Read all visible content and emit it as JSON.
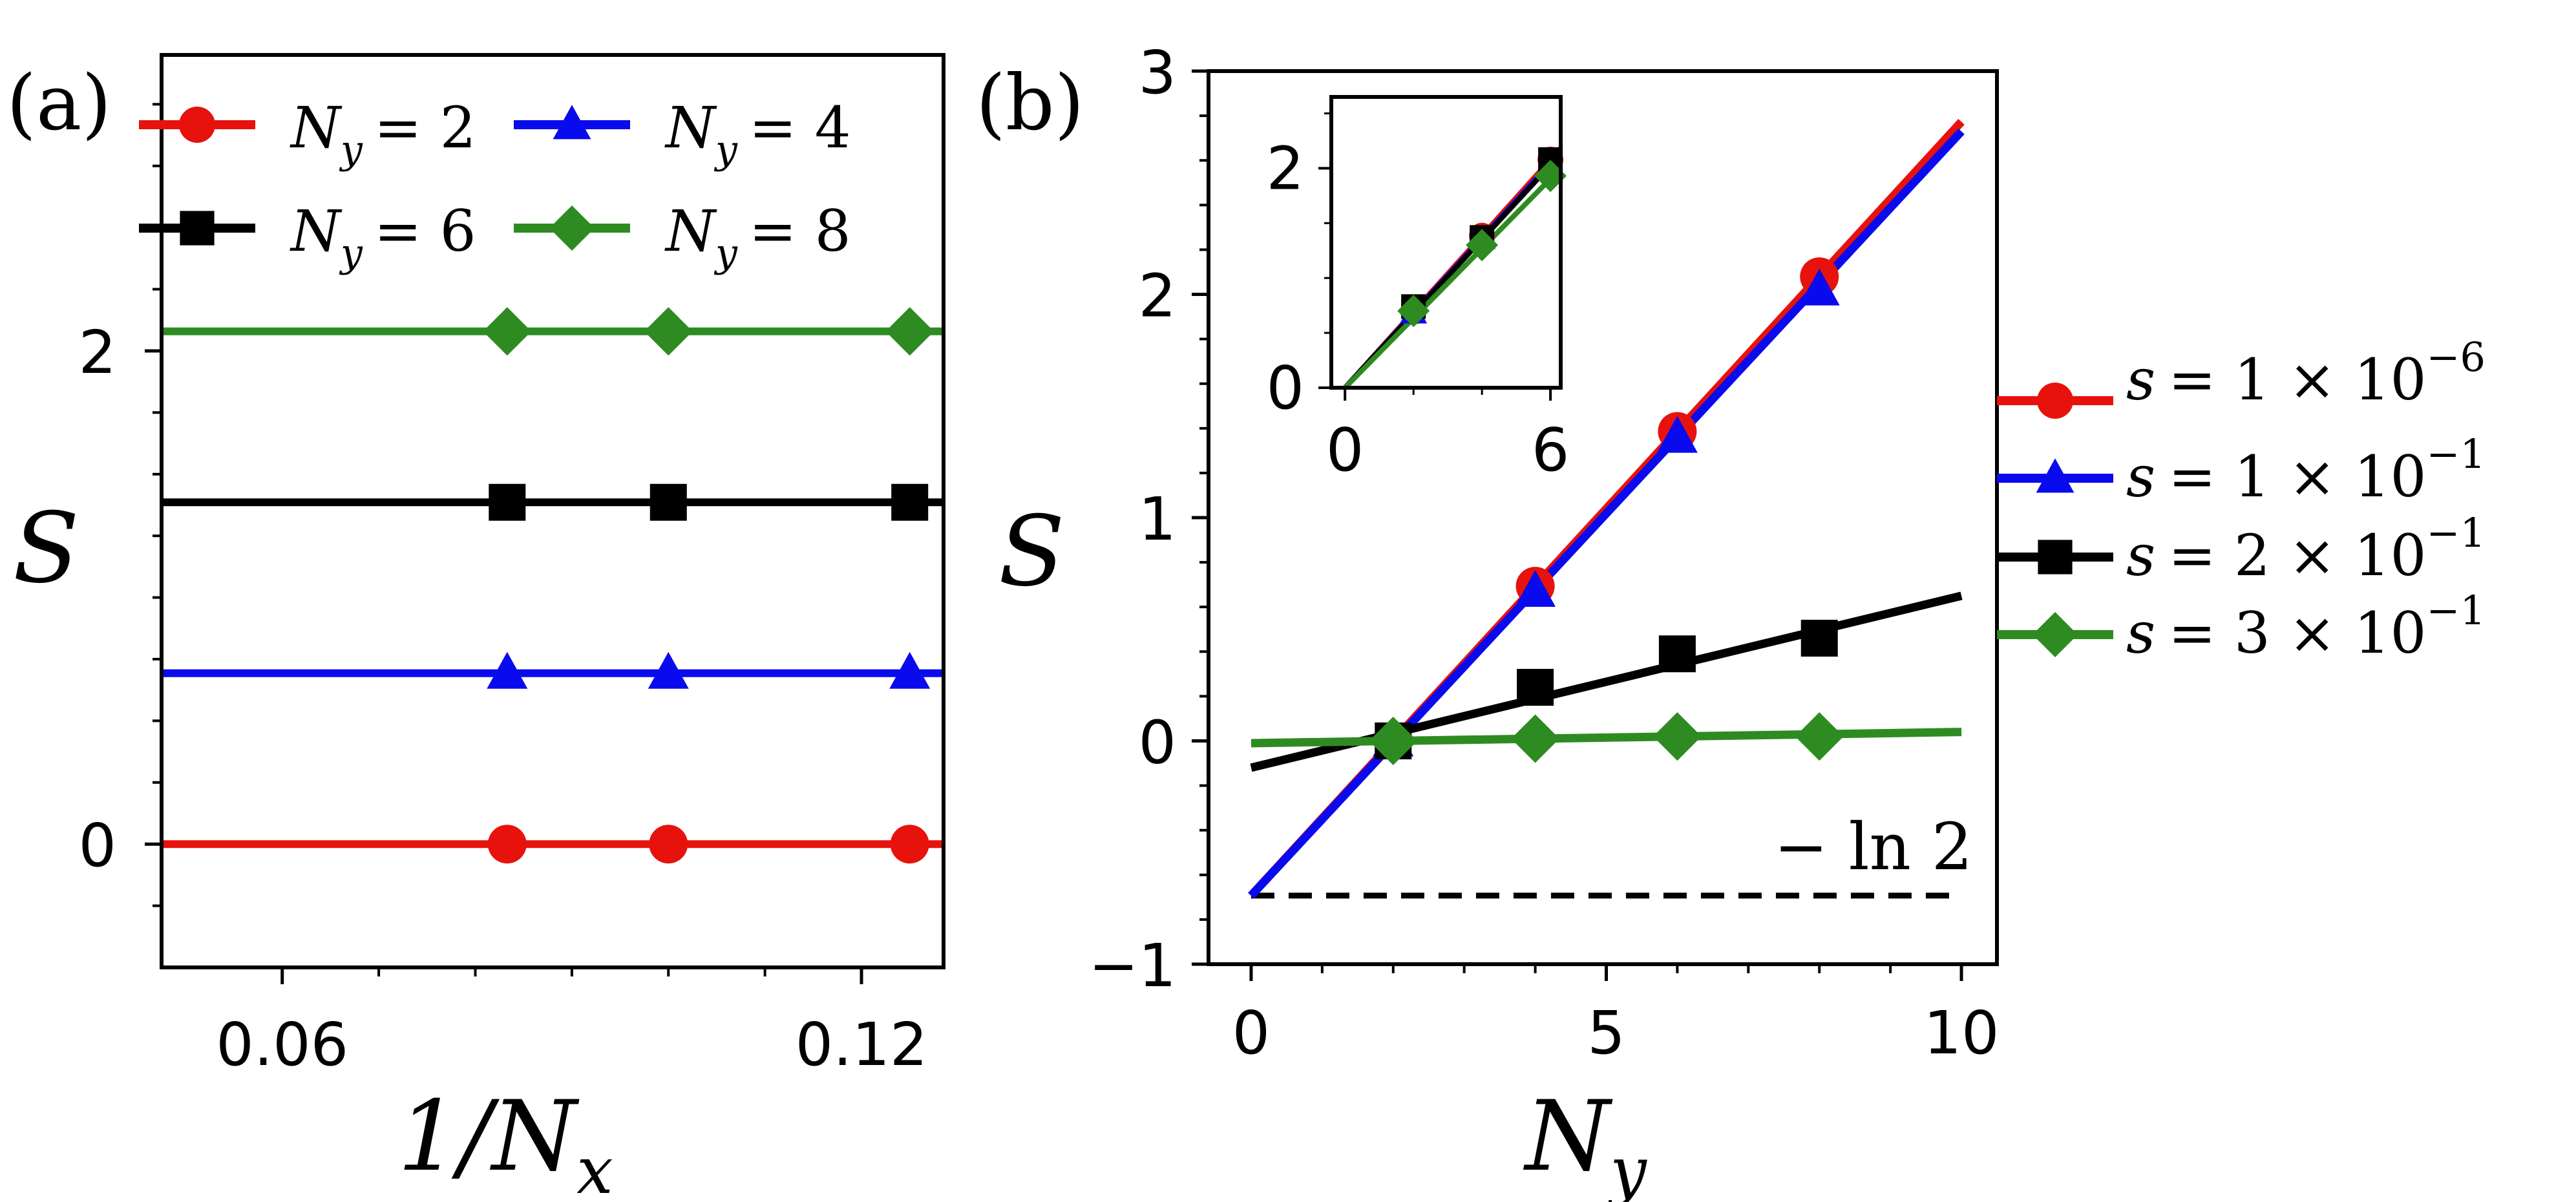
{
  "chart_data": [
    {
      "panel": "a",
      "panel_label": "(a)",
      "type": "line",
      "xlabel": "1/N_x",
      "ylabel": "S",
      "xlim": [
        0.0475,
        0.1285
      ],
      "ylim": [
        -0.5,
        3.2
      ],
      "xticks": [
        0.06,
        0.12
      ],
      "xtick_labels": [
        "0.06",
        "0.12"
      ],
      "yticks": [
        0,
        2
      ],
      "ytick_labels": [
        "0",
        "2"
      ],
      "legend_position": "top",
      "series": [
        {
          "name": "N_y = 2",
          "legend_lhs": "N",
          "legend_sub": "y",
          "legend_rhs": "= 2",
          "color": "#e8120c",
          "marker": "circle",
          "line_x": [
            0.0475,
            0.1285
          ],
          "line_y": [
            0,
            0
          ],
          "x": [
            0.0833,
            0.1,
            0.125
          ],
          "y": [
            0,
            0,
            0
          ]
        },
        {
          "name": "N_y = 4",
          "legend_lhs": "N",
          "legend_sub": "y",
          "legend_rhs": "= 4",
          "color": "#0a0aee",
          "marker": "triangle",
          "line_x": [
            0.0475,
            0.1285
          ],
          "line_y": [
            0.693,
            0.693
          ],
          "x": [
            0.0833,
            0.1,
            0.125
          ],
          "y": [
            0.693,
            0.693,
            0.693
          ]
        },
        {
          "name": "N_y = 6",
          "legend_lhs": "N",
          "legend_sub": "y",
          "legend_rhs": "= 6",
          "color": "#000000",
          "marker": "square",
          "line_x": [
            0.0475,
            0.1285
          ],
          "line_y": [
            1.386,
            1.386
          ],
          "x": [
            0.0833,
            0.1,
            0.125
          ],
          "y": [
            1.386,
            1.386,
            1.386
          ]
        },
        {
          "name": "N_y = 8",
          "legend_lhs": "N",
          "legend_sub": "y",
          "legend_rhs": "= 8",
          "color": "#2e8b22",
          "marker": "diamond",
          "line_x": [
            0.0475,
            0.1285
          ],
          "line_y": [
            2.079,
            2.079
          ],
          "x": [
            0.0833,
            0.1,
            0.125
          ],
          "y": [
            2.079,
            2.079,
            2.079
          ]
        }
      ]
    },
    {
      "panel": "b",
      "panel_label": "(b)",
      "type": "line",
      "xlabel": "N_y",
      "ylabel": "S",
      "xlim": [
        -0.6,
        10.5
      ],
      "ylim": [
        -1,
        3
      ],
      "xticks": [
        0,
        5,
        10
      ],
      "xtick_labels": [
        "0",
        "5",
        "10"
      ],
      "yticks": [
        -1,
        0,
        1,
        2,
        3
      ],
      "ytick_labels": [
        "−1",
        "0",
        "1",
        "2",
        "3"
      ],
      "reference_line": {
        "label": "− ln 2",
        "y": -0.693,
        "style": "dashed"
      },
      "legend_position": "right, outside",
      "series": [
        {
          "name": "s = 1 × 10^-6",
          "legend_lhs": "s",
          "legend_rhs": "= 1 × 10",
          "legend_exp": "−6",
          "color": "#e8120c",
          "marker": "circle",
          "line_x": [
            0,
            10
          ],
          "line_y": [
            -0.693,
            2.773
          ],
          "x": [
            4,
            6,
            8
          ],
          "y": [
            0.693,
            1.386,
            2.079
          ]
        },
        {
          "name": "s = 1 × 10^-1",
          "legend_lhs": "s",
          "legend_rhs": "= 1 × 10",
          "legend_exp": "−1",
          "color": "#0a0aee",
          "marker": "triangle",
          "line_x": [
            0,
            10
          ],
          "line_y": [
            -0.693,
            2.73
          ],
          "x": [
            2,
            4,
            6,
            8
          ],
          "y": [
            0,
            0.67,
            1.36,
            2.02
          ]
        },
        {
          "name": "s = 2 × 10^-1",
          "legend_lhs": "s",
          "legend_rhs": "= 2 × 10",
          "legend_exp": "−1",
          "color": "#000000",
          "marker": "square",
          "line_x": [
            0,
            10
          ],
          "line_y": [
            -0.12,
            0.65
          ],
          "x": [
            2,
            4,
            6,
            8
          ],
          "y": [
            0,
            0.24,
            0.39,
            0.46
          ]
        },
        {
          "name": "s = 3 × 10^-1",
          "legend_lhs": "s",
          "legend_rhs": "= 3 × 10",
          "legend_exp": "−1",
          "color": "#2e8b22",
          "marker": "diamond",
          "line_x": [
            0,
            10
          ],
          "line_y": [
            -0.01,
            0.04
          ],
          "x": [
            2,
            4,
            6,
            8
          ],
          "y": [
            0,
            0.01,
            0.02,
            0.02
          ]
        }
      ]
    },
    {
      "panel": "b-inset",
      "type": "line",
      "xlim": [
        -0.4,
        6.3
      ],
      "ylim": [
        0,
        2.65
      ],
      "xticks": [
        0,
        6
      ],
      "xtick_labels": [
        "0",
        "6"
      ],
      "yticks": [
        0,
        2
      ],
      "ytick_labels": [
        "0",
        "2"
      ],
      "series": [
        {
          "name": "s = 1 × 10^-6",
          "color": "#e8120c",
          "marker": "circle",
          "line_x": [
            0,
            6.3
          ],
          "line_y": [
            0,
            2.183
          ],
          "x": [
            2,
            4,
            6
          ],
          "y": [
            0.693,
            1.386,
            2.079
          ]
        },
        {
          "name": "s = 1 × 10^-1",
          "color": "#0a0aee",
          "marker": "triangle",
          "line_x": [
            0,
            6.3
          ],
          "line_y": [
            0,
            2.15
          ],
          "x": [
            2,
            4,
            6
          ],
          "y": [
            0.68,
            1.36,
            2.04
          ]
        },
        {
          "name": "s = 2 × 10^-1",
          "color": "#000000",
          "marker": "square",
          "line_x": [
            0,
            6.3
          ],
          "line_y": [
            0,
            2.13
          ],
          "x": [
            2,
            4,
            6
          ],
          "y": [
            0.74,
            1.37,
            2.08
          ]
        },
        {
          "name": "s = 3 × 10^-1",
          "color": "#2e8b22",
          "marker": "diamond",
          "line_x": [
            0,
            6.3
          ],
          "line_y": [
            0,
            2.0
          ],
          "x": [
            2,
            4,
            6
          ],
          "y": [
            0.7,
            1.3,
            1.93
          ]
        }
      ]
    }
  ]
}
